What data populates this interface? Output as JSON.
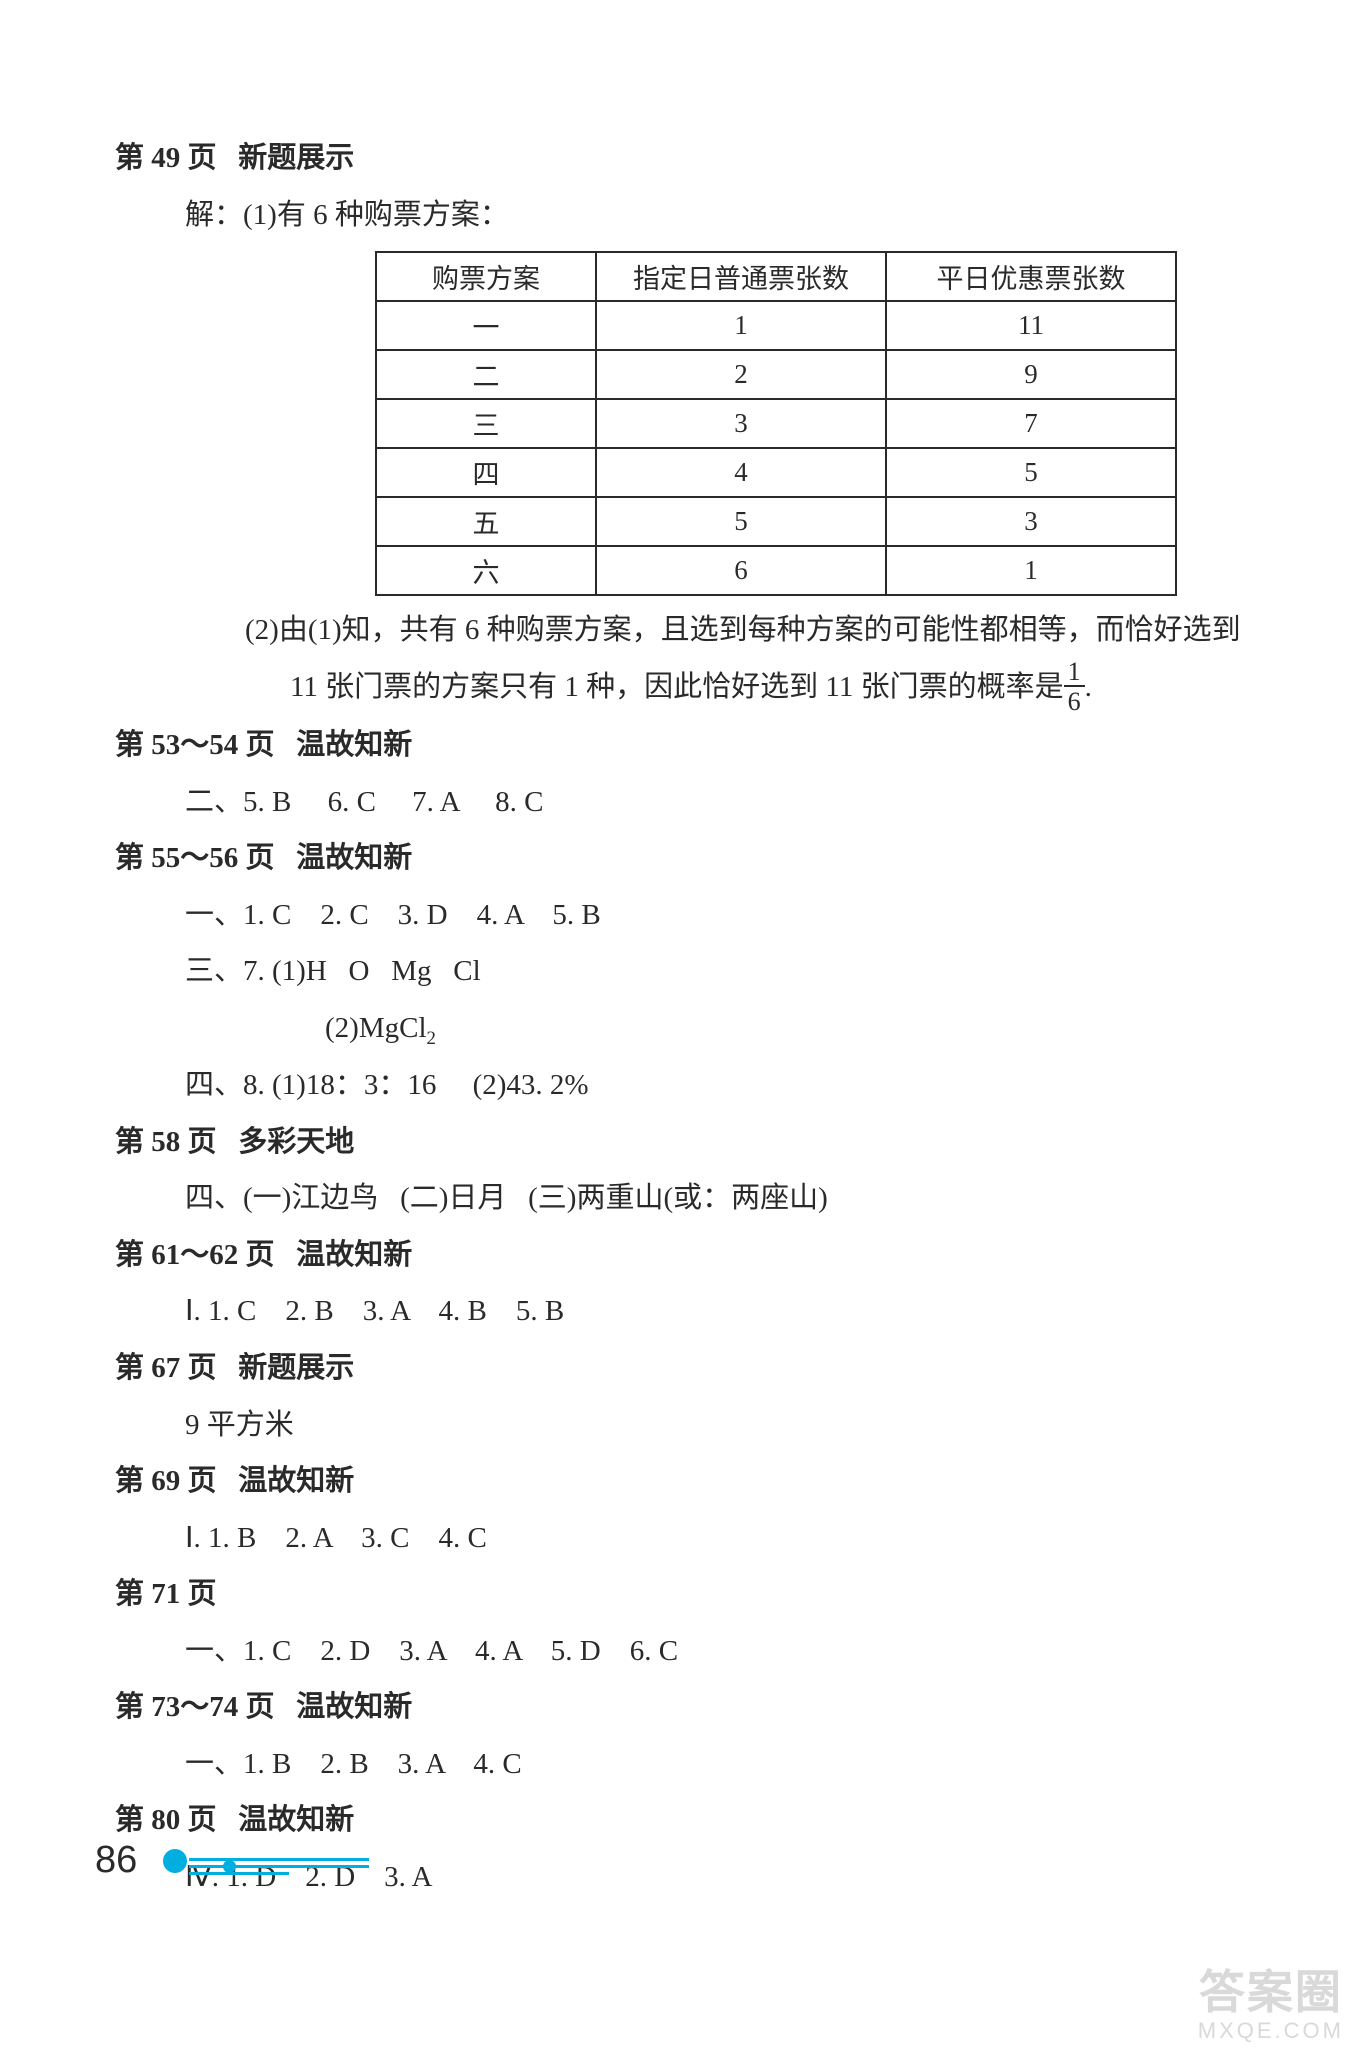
{
  "sections": {
    "s49": {
      "heading": "第 49 页   新题展示",
      "line1": "解：(1)有 6 种购票方案：",
      "table": {
        "headers": [
          "购票方案",
          "指定日普通票张数",
          "平日优惠票张数"
        ],
        "rows": [
          [
            "一",
            "1",
            "11"
          ],
          [
            "二",
            "2",
            "9"
          ],
          [
            "三",
            "3",
            "7"
          ],
          [
            "四",
            "4",
            "5"
          ],
          [
            "五",
            "5",
            "3"
          ],
          [
            "六",
            "6",
            "1"
          ]
        ]
      },
      "line2a": "(2)由(1)知，共有 6 种购票方案，且选到每种方案的可能性都相等，而恰好选到",
      "line2b_before": "11 张门票的方案只有 1 种，因此恰好选到 11 张门票的概率是",
      "frac_n": "1",
      "frac_d": "6",
      "line2b_after": "."
    },
    "s53": {
      "heading": "第 53～54 页   温故知新",
      "line": "二、5. B     6. C     7. A     8. C"
    },
    "s55": {
      "heading": "第 55～56 页   温故知新",
      "line1": "一、1. C    2. C    3. D    4. A    5. B",
      "line2": "三、7. (1)H   O   Mg   Cl",
      "line3_before": "(2)MgCl",
      "line3_sub": "2",
      "line4": "四、8. (1)18：3：16     (2)43. 2%"
    },
    "s58": {
      "heading": "第 58 页   多彩天地",
      "line": "四、(一)江边鸟   (二)日月   (三)两重山(或：两座山)"
    },
    "s61": {
      "heading": "第 61～62 页   温故知新",
      "line": "Ⅰ. 1. C    2. B    3. A    4. B    5. B"
    },
    "s67": {
      "heading": "第 67 页   新题展示",
      "line": "9 平方米"
    },
    "s69": {
      "heading": "第 69 页   温故知新",
      "line": "Ⅰ. 1. B    2. A    3. C    4. C"
    },
    "s71": {
      "heading": "第 71 页",
      "line": "一、1. C    2. D    3. A    4. A    5. D    6. C"
    },
    "s73": {
      "heading": "第 73～74 页   温故知新",
      "line": "一、1. B    2. B    3. A    4. C"
    },
    "s80": {
      "heading": "第 80 页   温故知新",
      "line": "Ⅳ. 1. D    2. D    3. A"
    }
  },
  "page_number": "86",
  "colors": {
    "text": "#2a2a2a",
    "accent": "#00aee0",
    "background": "#ffffff",
    "watermark": "#d9d9d9"
  },
  "watermark": {
    "line1": "答案圈",
    "line2": "MXQE.COM"
  }
}
